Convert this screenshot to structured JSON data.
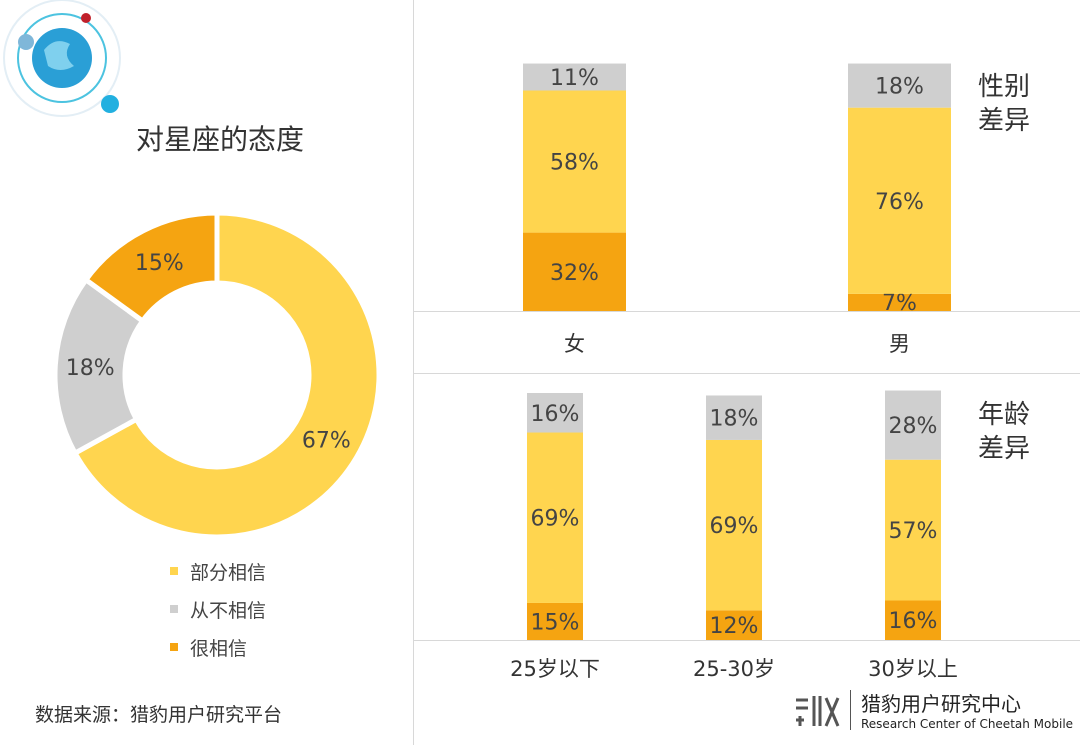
{
  "colors": {
    "partial": "#ffd54f",
    "never": "#cfcfcf",
    "strong": "#f5a411",
    "text": "#333333"
  },
  "left_title": "对星座的态度",
  "source": "数据来源：猎豹用户研究平台",
  "brand": {
    "name": "猎豹用户研究中心",
    "subtitle": "Research Center of Cheetah Mobile"
  },
  "gender_title": [
    "性别",
    "差异"
  ],
  "age_title": [
    "年龄",
    "差异"
  ],
  "chart_data": [
    {
      "type": "pie",
      "title": "对星座的态度",
      "donut": true,
      "slices": [
        {
          "label": "部分相信",
          "value": 67,
          "display": "67%",
          "color": "#ffd54f"
        },
        {
          "label": "从不相信",
          "value": 18,
          "display": "18%",
          "color": "#cfcfcf"
        },
        {
          "label": "很相信",
          "value": 15,
          "display": "15%",
          "color": "#f5a411"
        }
      ],
      "legend": [
        "部分相信",
        "从不相信",
        "很相信"
      ],
      "legend_placement": "bottom"
    },
    {
      "type": "bar",
      "stacked": true,
      "title": "性别差异",
      "categories": [
        "女",
        "男"
      ],
      "series": [
        {
          "name": "很相信",
          "values": [
            32,
            7
          ],
          "color": "#f5a411"
        },
        {
          "name": "部分相信",
          "values": [
            58,
            76
          ],
          "color": "#ffd54f"
        },
        {
          "name": "从不相信",
          "values": [
            11,
            18
          ],
          "color": "#cfcfcf"
        }
      ],
      "ylim": [
        0,
        100
      ]
    },
    {
      "type": "bar",
      "stacked": true,
      "title": "年龄差异",
      "categories": [
        "25岁以下",
        "25-30岁",
        "30岁以上"
      ],
      "series": [
        {
          "name": "很相信",
          "values": [
            15,
            12,
            16
          ],
          "color": "#f5a411"
        },
        {
          "name": "部分相信",
          "values": [
            69,
            69,
            57
          ],
          "color": "#ffd54f"
        },
        {
          "name": "从不相信",
          "values": [
            16,
            18,
            28
          ],
          "color": "#cfcfcf"
        }
      ],
      "ylim": [
        0,
        100
      ]
    }
  ]
}
